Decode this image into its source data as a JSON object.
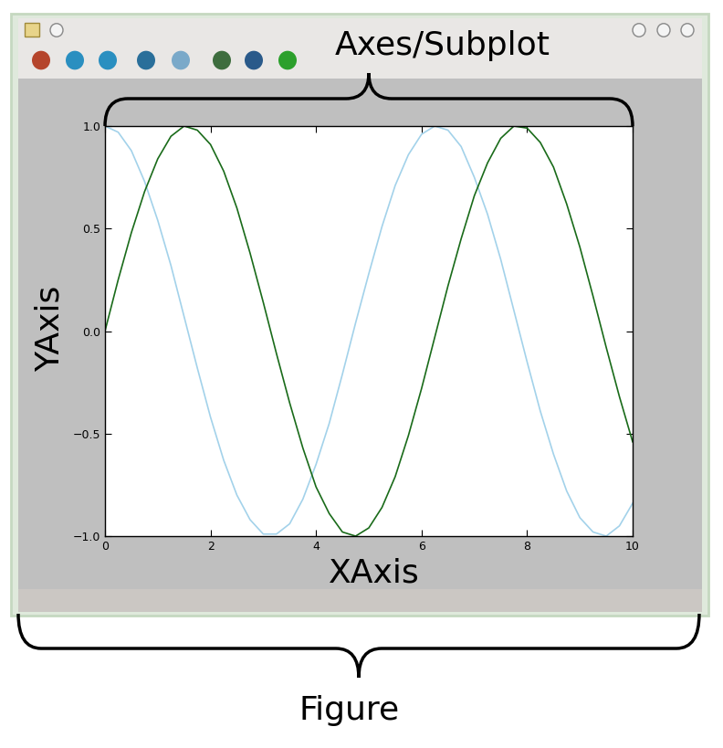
{
  "annotations": {
    "axes": "Axes/Subplot",
    "figure": "Figure",
    "y_axis": "YAxis",
    "x_axis": "XAxis"
  },
  "chart_data": {
    "type": "line",
    "x": [
      0,
      0.25,
      0.5,
      0.75,
      1,
      1.25,
      1.5,
      1.75,
      2,
      2.25,
      2.5,
      2.75,
      3,
      3.25,
      3.5,
      3.75,
      4,
      4.25,
      4.5,
      4.75,
      5,
      5.25,
      5.5,
      5.75,
      6,
      6.25,
      6.5,
      6.75,
      7,
      7.25,
      7.5,
      7.75,
      8,
      8.25,
      8.5,
      8.75,
      9,
      9.25,
      9.5,
      9.75,
      10
    ],
    "series": [
      {
        "color": "#a3d2ea",
        "values": [
          1.0,
          0.97,
          0.88,
          0.73,
          0.54,
          0.32,
          0.07,
          -0.18,
          -0.42,
          -0.63,
          -0.8,
          -0.92,
          -0.99,
          -0.99,
          -0.94,
          -0.82,
          -0.65,
          -0.45,
          -0.21,
          0.04,
          0.28,
          0.51,
          0.71,
          0.86,
          0.96,
          1.0,
          0.98,
          0.9,
          0.75,
          0.57,
          0.35,
          0.1,
          -0.15,
          -0.39,
          -0.6,
          -0.78,
          -0.91,
          -0.98,
          -1.0,
          -0.95,
          -0.84
        ]
      },
      {
        "color": "#1a6b1a",
        "values": [
          0.0,
          0.25,
          0.48,
          0.68,
          0.84,
          0.95,
          1.0,
          0.98,
          0.91,
          0.78,
          0.6,
          0.38,
          0.14,
          -0.11,
          -0.35,
          -0.57,
          -0.76,
          -0.89,
          -0.98,
          -1.0,
          -0.96,
          -0.86,
          -0.71,
          -0.51,
          -0.28,
          -0.03,
          0.22,
          0.45,
          0.66,
          0.82,
          0.94,
          1.0,
          0.99,
          0.92,
          0.8,
          0.62,
          0.41,
          0.17,
          -0.08,
          -0.32,
          -0.54
        ]
      }
    ],
    "xlim": [
      0,
      10
    ],
    "xticks": [
      0,
      2,
      4,
      6,
      8,
      10
    ],
    "ylim": [
      -1,
      1
    ],
    "yticks": [
      {
        "value": -1,
        "label": "−1.0"
      },
      {
        "value": -0.5,
        "label": "−0.5"
      },
      {
        "value": 0,
        "label": "0.0"
      },
      {
        "value": 0.5,
        "label": "0.5"
      },
      {
        "value": 1,
        "label": "1.0"
      }
    ],
    "grid": false
  }
}
